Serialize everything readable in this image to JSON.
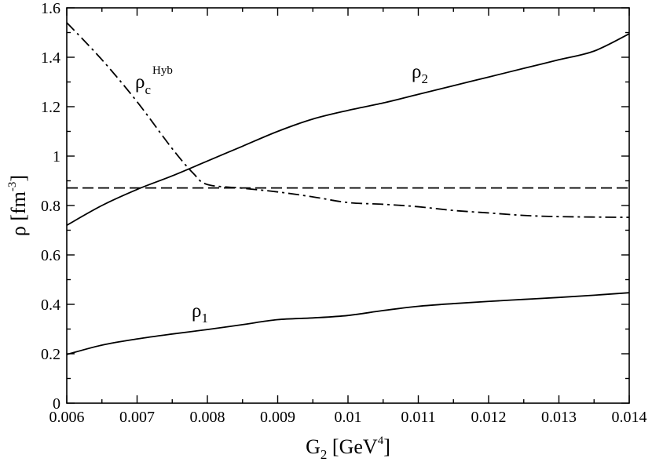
{
  "chart_data": {
    "type": "line",
    "xlabel": "G",
    "xlabel_sub": "2",
    "xlabel_unit_before": " [GeV",
    "xlabel_unit_sup": "4",
    "xlabel_unit_after": "]",
    "ylabel": "ρ [fm",
    "ylabel_sup": "-3",
    "ylabel_after": "]",
    "xlim": [
      0.006,
      0.014
    ],
    "ylim": [
      0,
      1.6
    ],
    "xticks": [
      "0.006",
      "0.007",
      "0.008",
      "0.009",
      "0.01",
      "0.011",
      "0.012",
      "0.013",
      "0.014"
    ],
    "yticks": [
      "0",
      "0.2",
      "0.4",
      "0.6",
      "0.8",
      "1",
      "1.2",
      "1.4",
      "1.6"
    ],
    "grid": false,
    "series": [
      {
        "name": "ρ",
        "name_sub": "2",
        "style": "solid",
        "x": [
          0.006,
          0.0065,
          0.007,
          0.0075,
          0.008,
          0.0085,
          0.009,
          0.0095,
          0.01,
          0.0105,
          0.011,
          0.0115,
          0.012,
          0.0125,
          0.013,
          0.0135,
          0.014
        ],
        "y": [
          0.72,
          0.8,
          0.865,
          0.92,
          0.98,
          1.04,
          1.1,
          1.15,
          1.185,
          1.215,
          1.25,
          1.285,
          1.32,
          1.355,
          1.39,
          1.425,
          1.495
        ]
      },
      {
        "name": "ρ",
        "name_sub": "1",
        "style": "solid",
        "x": [
          0.006,
          0.0065,
          0.007,
          0.0075,
          0.008,
          0.0085,
          0.009,
          0.0095,
          0.01,
          0.0105,
          0.011,
          0.0115,
          0.012,
          0.0125,
          0.013,
          0.0135,
          0.014
        ],
        "y": [
          0.197,
          0.235,
          0.26,
          0.28,
          0.298,
          0.318,
          0.338,
          0.345,
          0.355,
          0.375,
          0.392,
          0.403,
          0.412,
          0.42,
          0.428,
          0.437,
          0.447
        ]
      },
      {
        "name": "ρ",
        "name_sub": "c",
        "name_sup": "Hyb",
        "style": "dashdot",
        "x": [
          0.006,
          0.0065,
          0.007,
          0.0075,
          0.0078,
          0.008,
          0.0085,
          0.009,
          0.0095,
          0.01,
          0.0105,
          0.011,
          0.0115,
          0.012,
          0.0125,
          0.013,
          0.014
        ],
        "y": [
          1.54,
          1.39,
          1.22,
          1.03,
          0.93,
          0.885,
          0.87,
          0.855,
          0.835,
          0.812,
          0.805,
          0.795,
          0.78,
          0.77,
          0.76,
          0.755,
          0.752
        ]
      },
      {
        "name": "",
        "style": "dashed",
        "x": [
          0.006,
          0.014
        ],
        "y": [
          0.871,
          0.871
        ]
      }
    ]
  }
}
